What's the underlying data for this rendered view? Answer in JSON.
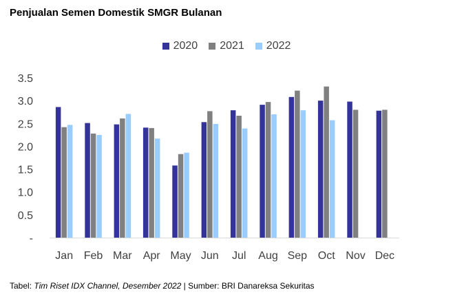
{
  "chart_data": {
    "type": "bar",
    "title": "Penjualan Semen Domestik SMGR Bulanan",
    "categories": [
      "Jan",
      "Feb",
      "Mar",
      "Apr",
      "May",
      "Jun",
      "Jul",
      "Aug",
      "Sep",
      "Oct",
      "Nov",
      "Dec"
    ],
    "series": [
      {
        "name": "2020",
        "color": "#333399",
        "values": [
          2.86,
          2.51,
          2.48,
          2.41,
          1.58,
          2.53,
          2.79,
          2.91,
          3.08,
          3.0,
          2.98,
          2.78
        ]
      },
      {
        "name": "2021",
        "color": "#808080",
        "values": [
          2.42,
          2.28,
          2.61,
          2.4,
          1.83,
          2.77,
          2.67,
          2.97,
          3.22,
          3.31,
          2.8,
          2.8
        ]
      },
      {
        "name": "2022",
        "color": "#99ccff",
        "values": [
          2.47,
          2.25,
          2.71,
          2.17,
          1.86,
          2.49,
          2.39,
          2.7,
          2.79,
          2.57,
          null,
          null
        ]
      }
    ],
    "ylim": [
      0,
      3.5
    ],
    "y_ticks": [
      "-",
      "0.5",
      "1.0",
      "1.5",
      "2.0",
      "2.5",
      "3.0",
      "3.5"
    ],
    "xlabel": "",
    "ylabel": "",
    "grid": false,
    "legend_position": "top-center"
  },
  "footer": {
    "prefix": "Tabel: ",
    "italic": "Tim Riset IDX Channel, Desember 2022",
    "suffix": " | Sumber: BRI Danareksa Sekuritas"
  }
}
